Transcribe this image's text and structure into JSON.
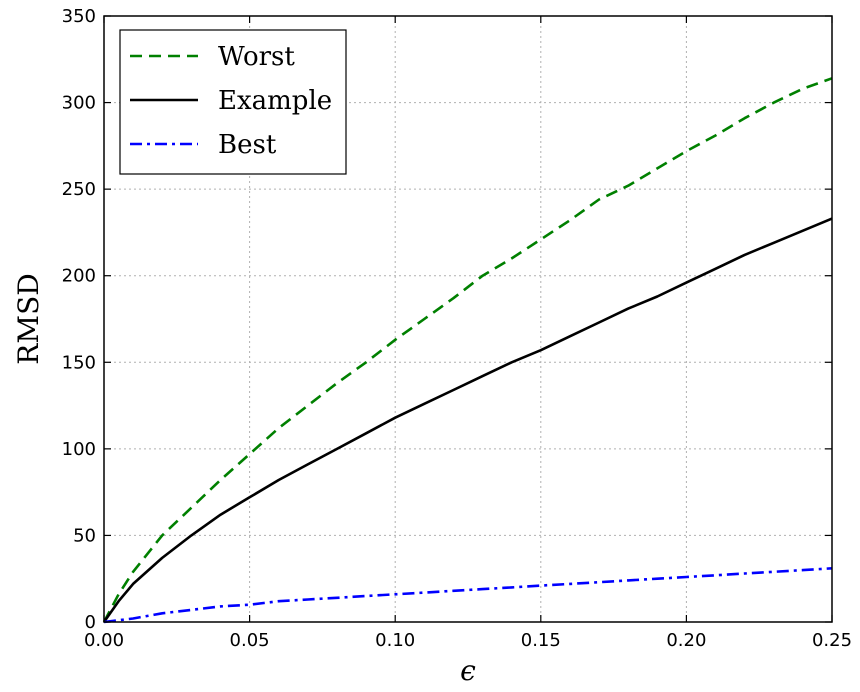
{
  "chart_data": {
    "type": "line",
    "title": "",
    "xlabel": "ϵ",
    "ylabel": "RMSD",
    "xlim": [
      0,
      0.25
    ],
    "ylim": [
      0,
      350
    ],
    "x_ticks": [
      0.0,
      0.05,
      0.1,
      0.15,
      0.2,
      0.25
    ],
    "x_tick_labels": [
      "0.00",
      "0.05",
      "0.10",
      "0.15",
      "0.20",
      "0.25"
    ],
    "y_ticks": [
      0,
      50,
      100,
      150,
      200,
      250,
      300,
      350
    ],
    "y_tick_labels": [
      "0",
      "50",
      "100",
      "150",
      "200",
      "250",
      "300",
      "350"
    ],
    "grid": true,
    "legend_position": "top-left",
    "series": [
      {
        "name": "Worst",
        "color": "#008000",
        "style": "dashed",
        "x": [
          0,
          0.005,
          0.01,
          0.02,
          0.03,
          0.04,
          0.05,
          0.06,
          0.07,
          0.08,
          0.09,
          0.1,
          0.11,
          0.12,
          0.13,
          0.14,
          0.15,
          0.16,
          0.17,
          0.18,
          0.19,
          0.2,
          0.21,
          0.22,
          0.23,
          0.24,
          0.25
        ],
        "values": [
          0,
          16,
          29,
          50,
          66,
          82,
          97,
          112,
          125,
          138,
          150,
          163,
          175,
          187,
          200,
          210,
          221,
          232,
          244,
          252,
          262,
          272,
          281,
          291,
          300,
          308,
          314
        ]
      },
      {
        "name": "Example",
        "color": "#000000",
        "style": "solid",
        "x": [
          0,
          0.005,
          0.01,
          0.02,
          0.03,
          0.04,
          0.05,
          0.06,
          0.07,
          0.08,
          0.09,
          0.1,
          0.11,
          0.12,
          0.13,
          0.14,
          0.15,
          0.16,
          0.17,
          0.18,
          0.19,
          0.2,
          0.21,
          0.22,
          0.23,
          0.24,
          0.25
        ],
        "values": [
          0,
          12,
          22,
          37,
          50,
          62,
          72,
          82,
          91,
          100,
          109,
          118,
          126,
          134,
          142,
          150,
          157,
          165,
          173,
          181,
          188,
          196,
          204,
          212,
          219,
          226,
          233
        ]
      },
      {
        "name": "Best",
        "color": "#0000ff",
        "style": "dashdot",
        "x": [
          0,
          0.01,
          0.02,
          0.03,
          0.04,
          0.05,
          0.06,
          0.07,
          0.08,
          0.09,
          0.1,
          0.11,
          0.12,
          0.13,
          0.14,
          0.15,
          0.16,
          0.17,
          0.18,
          0.19,
          0.2,
          0.21,
          0.22,
          0.23,
          0.24,
          0.25
        ],
        "values": [
          0,
          2,
          5,
          7,
          9,
          10,
          12,
          13,
          14,
          15,
          16,
          17,
          18,
          19,
          20,
          21,
          22,
          23,
          24,
          25,
          26,
          27,
          28,
          29,
          30,
          31
        ]
      }
    ]
  }
}
